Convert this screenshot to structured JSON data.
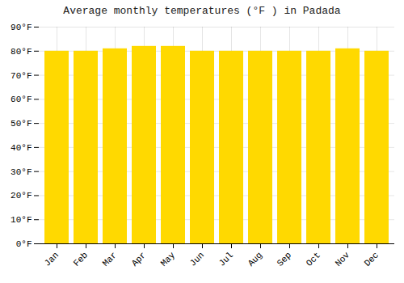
{
  "chart_data": {
    "type": "bar",
    "title": "Average monthly temperatures (°F ) in Padada",
    "categories": [
      "Jan",
      "Feb",
      "Mar",
      "Apr",
      "May",
      "Jun",
      "Jul",
      "Aug",
      "Sep",
      "Oct",
      "Nov",
      "Dec"
    ],
    "values": [
      80,
      80,
      81,
      82,
      82,
      80,
      80,
      80,
      80,
      80,
      81,
      80
    ],
    "color": "#FFD900",
    "ylim": [
      0,
      90
    ],
    "yticks": [
      {
        "value": 0,
        "label": "0°F"
      },
      {
        "value": 10,
        "label": "10°F"
      },
      {
        "value": 20,
        "label": "20°F"
      },
      {
        "value": 30,
        "label": "30°F"
      },
      {
        "value": 40,
        "label": "40°F"
      },
      {
        "value": 50,
        "label": "50°F"
      },
      {
        "value": 60,
        "label": "60°F"
      },
      {
        "value": 70,
        "label": "70°F"
      },
      {
        "value": 80,
        "label": "80°F"
      },
      {
        "value": 90,
        "label": "90°F"
      }
    ],
    "grid": true
  }
}
